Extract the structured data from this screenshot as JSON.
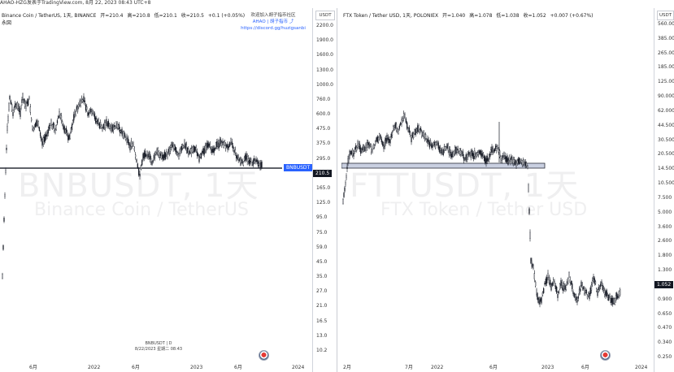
{
  "topbar": {
    "text": "AHAO-HZG发表于TradingView.com, 8月 22, 2023 08:43 UTC+8"
  },
  "left_chart": {
    "legend": {
      "symbol": "Binance Coin / TetherUS, 1天, BINANCE",
      "open": "开=210.4",
      "high": "高=210.8",
      "low": "低=210.1",
      "close": "收=210.5",
      "change": "+0.1 (+0.05%)"
    },
    "sub_legend": "永図",
    "promo": {
      "line1": "欢迎加入胡子指币社区",
      "line2": "AHAO | 胡子指币 ⤴",
      "line3": "https://discord.gg/huzigsanbi"
    },
    "watermark_ticker": "BNBUSDT, 1天",
    "watermark_name": "Binance Coin / TetherUS",
    "axis_header": "USDT",
    "price_ticks": [
      "2200.0",
      "1900.0",
      "1600.0",
      "1300.0",
      "1000.0",
      "760.0",
      "600.0",
      "475.0",
      "375.0",
      "295.0",
      "210.5",
      "165.0",
      "125.0",
      "95.0",
      "75.0",
      "59.0",
      "45.0",
      "35.0",
      "27.0",
      "21.0",
      "16.5",
      "13.0",
      "10.2"
    ],
    "last_price": "210.5",
    "symbol_badge": "BNBUSDT",
    "x_ticks": [
      "6月",
      "2022",
      "6月",
      "2023",
      "6月",
      "2024"
    ],
    "footer_line1": "BNBUSDT | D",
    "footer_line2": "8/22/2023 星期二 08:43"
  },
  "right_chart": {
    "legend": {
      "symbol": "FTX Token / Tether USD, 1天, POLONIEX",
      "open": "开=1.040",
      "high": "高=1.078",
      "low": "低=1.038",
      "close": "收=1.052",
      "change": "+0.007 (+0.67%)"
    },
    "watermark_ticker": "FTTUSDT, 1天",
    "watermark_name": "FTX Token / Tether USD",
    "axis_header": "USDT",
    "price_ticks": [
      "560.00",
      "385.00",
      "265.00",
      "185.00",
      "125.00",
      "90.000",
      "62.000",
      "44.500",
      "30.500",
      "20.500",
      "14.500",
      "10.500",
      "7.500",
      "5.000",
      "3.600",
      "2.600",
      "1.800",
      "1.300",
      "1.052",
      "0.900",
      "0.650",
      "0.470",
      "0.340",
      "0.250"
    ],
    "last_price": "1.052",
    "x_ticks": [
      "2月",
      "7月",
      "2022",
      "6月",
      "2023",
      "6月",
      "2024"
    ]
  }
}
